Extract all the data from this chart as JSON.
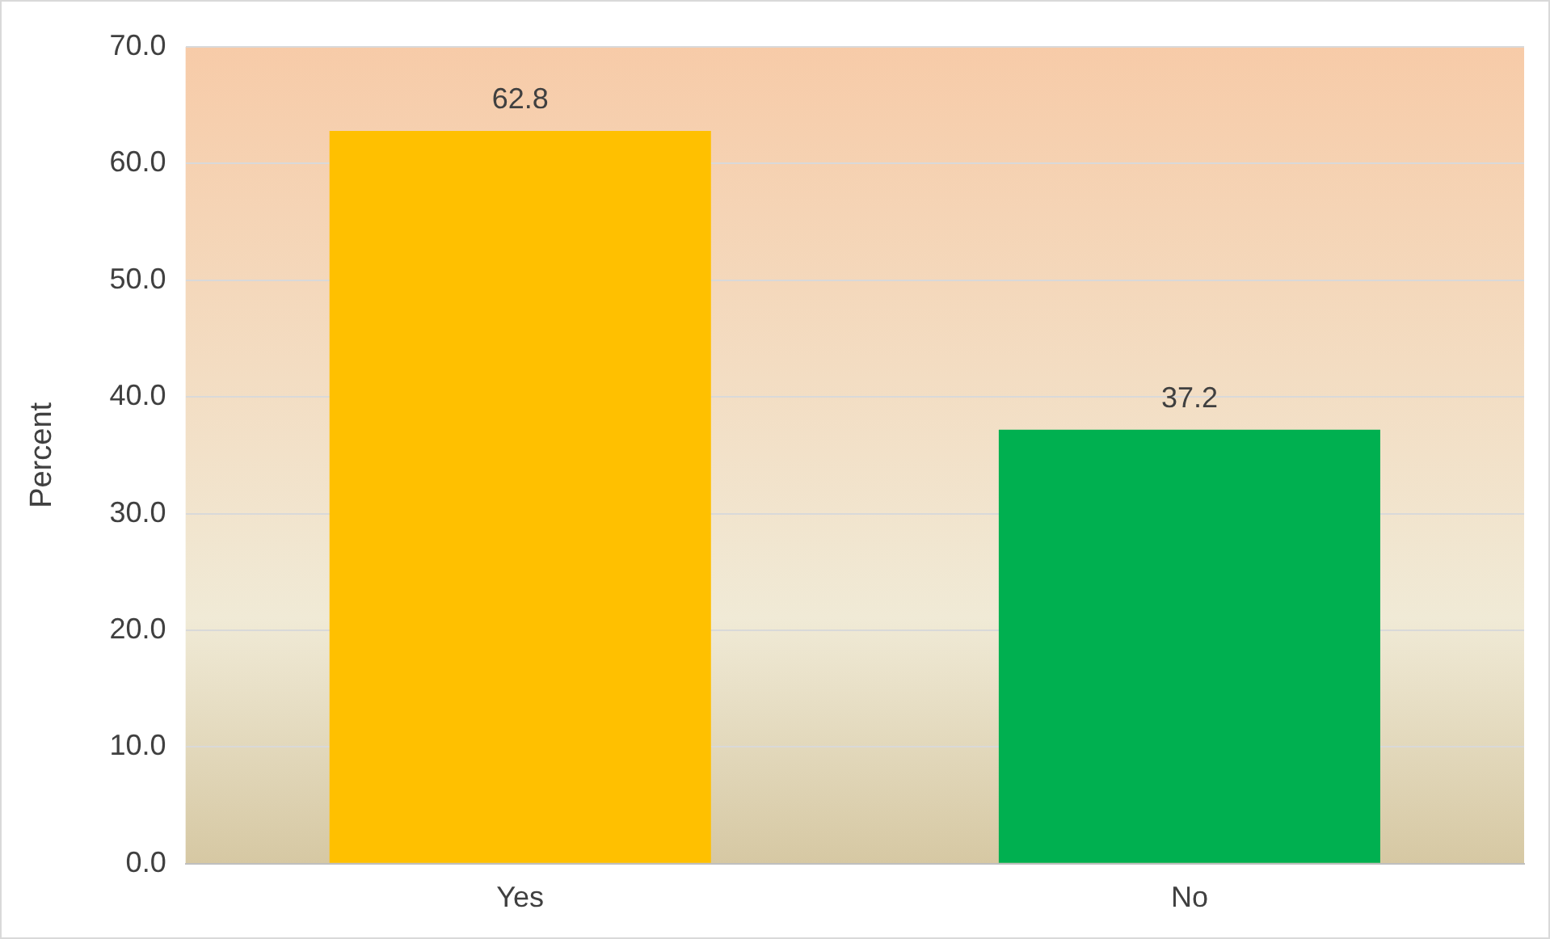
{
  "chart_data": {
    "type": "bar",
    "ylabel": "Percent",
    "categories": [
      "Yes",
      "No"
    ],
    "values": [
      62.8,
      37.2
    ],
    "colors": [
      "#ffc000",
      "#00b050"
    ],
    "ylim": [
      0,
      70
    ],
    "yticks": [
      {
        "value": 0,
        "label": "0.0"
      },
      {
        "value": 10,
        "label": "10.0"
      },
      {
        "value": 20,
        "label": "20.0"
      },
      {
        "value": 30,
        "label": "30.0"
      },
      {
        "value": 40,
        "label": "40.0"
      },
      {
        "value": 50,
        "label": "50.0"
      },
      {
        "value": 60,
        "label": "60.0"
      },
      {
        "value": 70,
        "label": "70.0"
      }
    ],
    "grid": "y",
    "data_labels": true
  }
}
